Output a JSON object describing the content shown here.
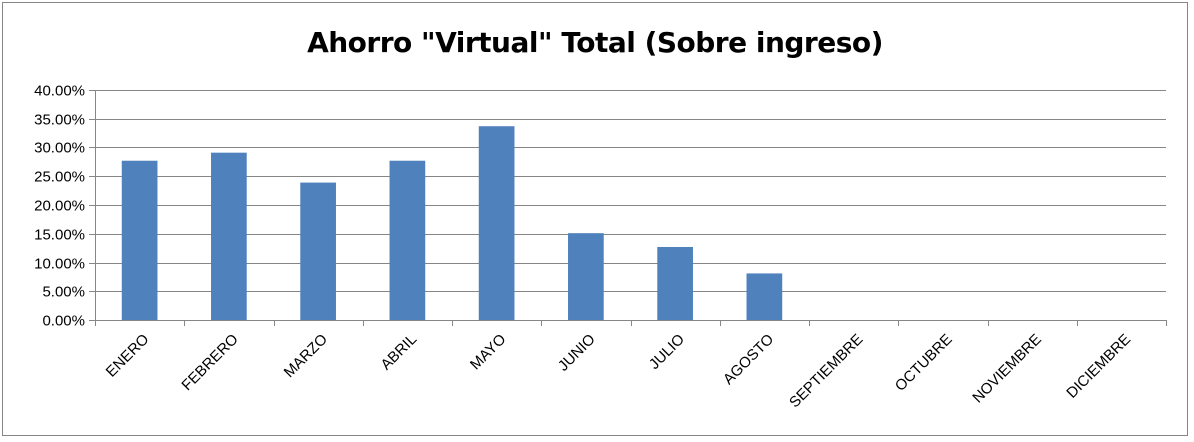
{
  "chart_data": {
    "type": "bar",
    "title": "Ahorro \"Virtual\" Total (Sobre ingreso)",
    "categories": [
      "ENERO",
      "FEBRERO",
      "MARZO",
      "ABRIL",
      "MAYO",
      "JUNIO",
      "JULIO",
      "AGOSTO",
      "SEPTIEMBRE",
      "OCTUBRE",
      "NOVIEMBRE",
      "DICIEMBRE"
    ],
    "values": [
      0.277,
      0.291,
      0.239,
      0.277,
      0.337,
      0.151,
      0.127,
      0.081,
      null,
      null,
      null,
      null
    ],
    "y_ticks": [
      "0.00%",
      "5.00%",
      "10.00%",
      "15.00%",
      "20.00%",
      "25.00%",
      "30.00%",
      "35.00%",
      "40.00%"
    ],
    "ylim": [
      0,
      0.4
    ],
    "y_format": "percent",
    "grid": true,
    "legend": "none",
    "bar_color": "#4F81BD",
    "xlabel": "",
    "ylabel": ""
  }
}
